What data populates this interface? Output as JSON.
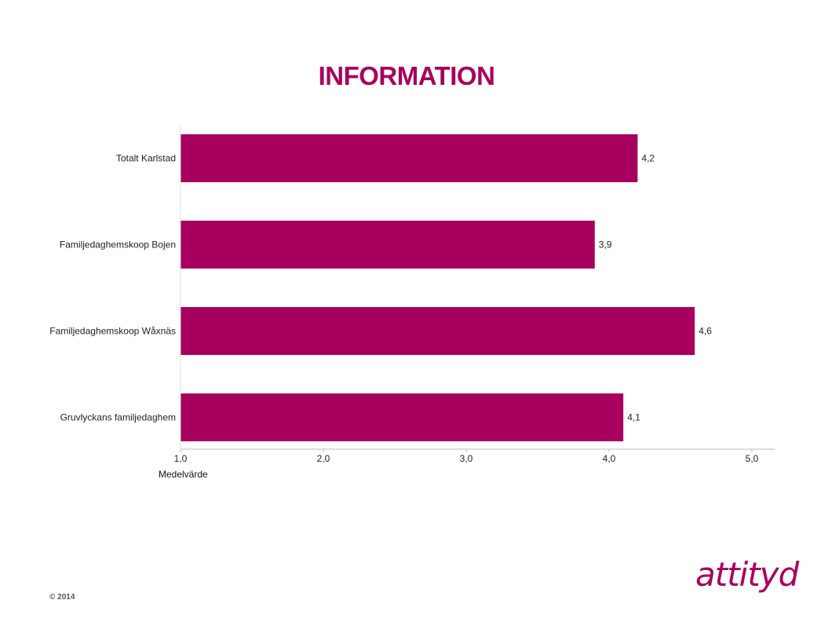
{
  "chart_data": {
    "type": "bar",
    "orientation": "horizontal",
    "title": "INFORMATION",
    "categories": [
      "Totalt Karlstad",
      "Familjedaghemskoop Bojen",
      "Familjedaghemskoop Wåxnäs",
      "Gruvlyckans familjedaghem"
    ],
    "values": [
      4.2,
      3.9,
      4.6,
      4.1
    ],
    "value_labels": [
      "4,2",
      "3,9",
      "4,6",
      "4,1"
    ],
    "xlabel": "Medelvärde",
    "xlim": [
      1.0,
      5.0
    ],
    "xticks": [
      "1,0",
      "2,0",
      "3,0",
      "4,0",
      "5,0"
    ],
    "grid": false,
    "legend": "none",
    "bar_color": "#a8005e"
  },
  "footer": {
    "copyright": "© 2014",
    "logo_text": "attityd"
  },
  "colors": {
    "accent": "#a8005e"
  }
}
